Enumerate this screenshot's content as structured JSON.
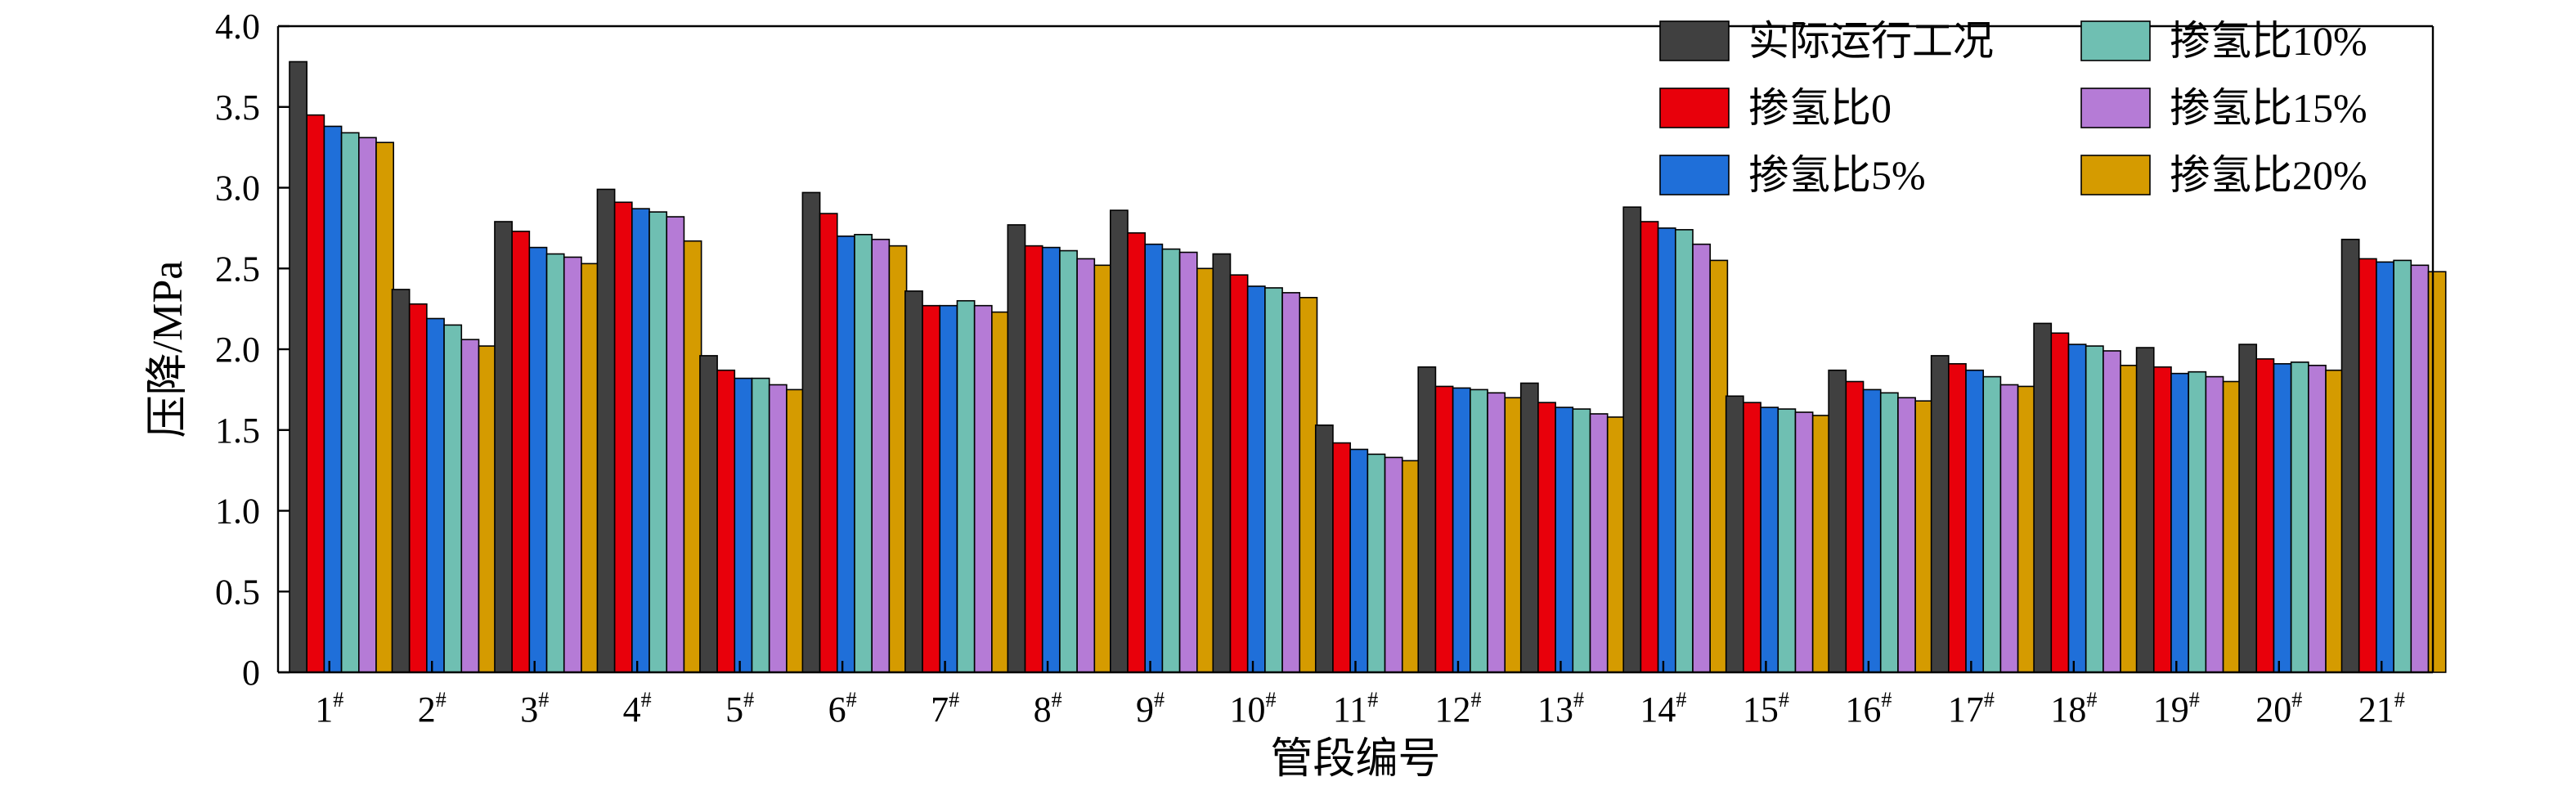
{
  "chart_data": {
    "type": "bar",
    "xlabel": "管段编号",
    "ylabel": "压降/MPa",
    "ylim": [
      0,
      4.0
    ],
    "yticks": [
      "0",
      "0.5",
      "1.0",
      "1.5",
      "2.0",
      "2.5",
      "3.0",
      "3.5",
      "4.0"
    ],
    "ytick_values": [
      0,
      0.5,
      1.0,
      1.5,
      2.0,
      2.5,
      3.0,
      3.5,
      4.0
    ],
    "category_numbers": [
      "1",
      "2",
      "3",
      "4",
      "5",
      "6",
      "7",
      "8",
      "9",
      "10",
      "11",
      "12",
      "13",
      "14",
      "15",
      "16",
      "17",
      "18",
      "19",
      "20",
      "21"
    ],
    "category_superscript": "#",
    "legend_position": "top-right",
    "grid": false,
    "series": [
      {
        "name": "实际运行工况",
        "color": "#404040",
        "values": [
          3.78,
          2.37,
          2.79,
          2.99,
          1.96,
          2.97,
          2.36,
          2.77,
          2.86,
          2.59,
          1.53,
          1.89,
          1.79,
          2.88,
          1.71,
          1.87,
          1.96,
          2.16,
          2.01,
          2.03,
          2.68
        ]
      },
      {
        "name": "掺氢比0",
        "color": "#e8000b",
        "values": [
          3.45,
          2.28,
          2.73,
          2.91,
          1.87,
          2.84,
          2.27,
          2.64,
          2.72,
          2.46,
          1.42,
          1.77,
          1.67,
          2.79,
          1.67,
          1.8,
          1.91,
          2.1,
          1.89,
          1.94,
          2.56
        ]
      },
      {
        "name": "掺氢比5%",
        "color": "#1f6fd9",
        "values": [
          3.38,
          2.19,
          2.63,
          2.87,
          1.82,
          2.7,
          2.27,
          2.63,
          2.65,
          2.39,
          1.38,
          1.76,
          1.64,
          2.75,
          1.64,
          1.75,
          1.87,
          2.03,
          1.85,
          1.91,
          2.54
        ]
      },
      {
        "name": "掺氢比10%",
        "color": "#6fbfb2",
        "values": [
          3.34,
          2.15,
          2.59,
          2.85,
          1.82,
          2.71,
          2.3,
          2.61,
          2.62,
          2.38,
          1.35,
          1.75,
          1.63,
          2.74,
          1.63,
          1.73,
          1.83,
          2.02,
          1.86,
          1.92,
          2.55
        ]
      },
      {
        "name": "掺氢比15%",
        "color": "#b57bd6",
        "values": [
          3.31,
          2.06,
          2.57,
          2.82,
          1.78,
          2.68,
          2.27,
          2.56,
          2.6,
          2.35,
          1.33,
          1.73,
          1.6,
          2.65,
          1.61,
          1.7,
          1.78,
          1.99,
          1.83,
          1.9,
          2.52
        ]
      },
      {
        "name": "掺氢比20%",
        "color": "#d59b00",
        "values": [
          3.28,
          2.02,
          2.53,
          2.67,
          1.75,
          2.64,
          2.23,
          2.52,
          2.5,
          2.32,
          1.31,
          1.7,
          1.58,
          2.55,
          1.59,
          1.68,
          1.77,
          1.9,
          1.8,
          1.87,
          2.48
        ]
      }
    ]
  }
}
